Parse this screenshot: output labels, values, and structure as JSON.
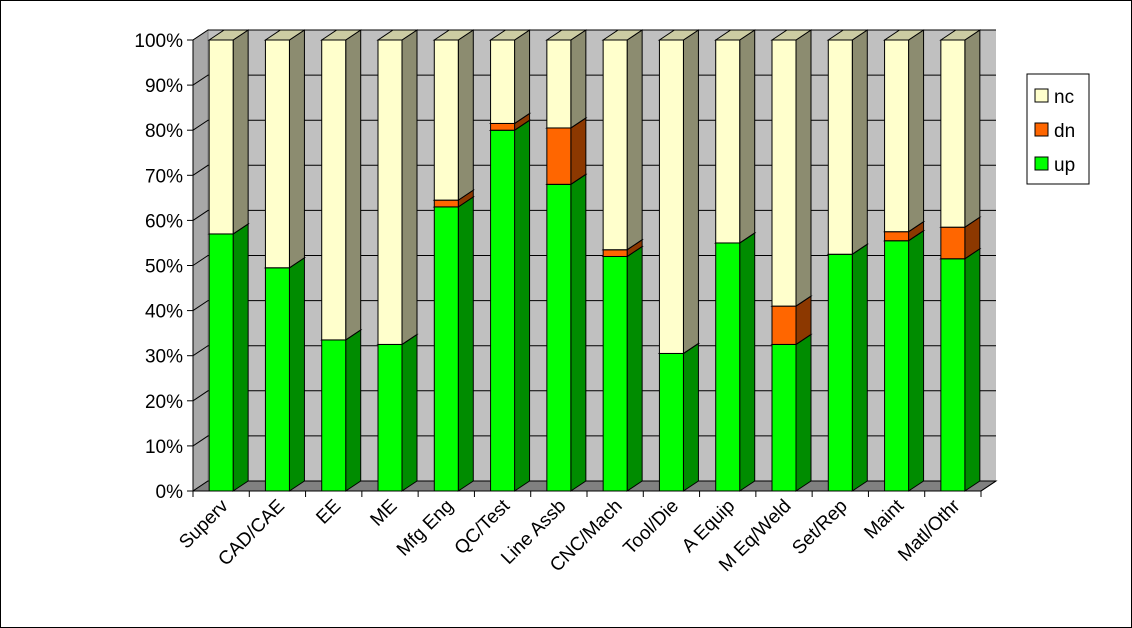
{
  "chart_data": {
    "type": "bar",
    "stacked": true,
    "percent_stacked": true,
    "three_d": true,
    "categories": [
      "Superv",
      "CAD/CAE",
      "EE",
      "ME",
      "Mfg Eng",
      "QC/Test",
      "Line Assb",
      "CNC/Mach",
      "Tool/Die",
      "A Equip",
      "M Eq/Weld",
      "Set/Rep",
      "Maint",
      "Matl/Othr"
    ],
    "series": [
      {
        "name": "up",
        "color": "#00ff00",
        "values": [
          57,
          49.5,
          33.5,
          32.5,
          63,
          80,
          68,
          52,
          30.5,
          55,
          32.5,
          52.5,
          55.5,
          51.5
        ]
      },
      {
        "name": "dn",
        "color": "#ff6600",
        "values": [
          0,
          0,
          0,
          0,
          1.5,
          1.5,
          12.5,
          1.5,
          0,
          0,
          8.5,
          0,
          2,
          7
        ]
      },
      {
        "name": "nc",
        "color": "#ffffcc",
        "values": [
          43,
          50.5,
          66.5,
          67.5,
          35.5,
          18.5,
          19.5,
          46.5,
          69.5,
          45,
          59,
          47.5,
          42.5,
          41.5
        ]
      }
    ],
    "y_ticks": [
      "0%",
      "10%",
      "20%",
      "30%",
      "40%",
      "50%",
      "60%",
      "70%",
      "80%",
      "90%",
      "100%"
    ],
    "ylim": [
      0,
      100
    ],
    "grid": true,
    "legend": {
      "placement": "right",
      "items": [
        {
          "label": "nc",
          "color": "#ffffcc"
        },
        {
          "label": "dn",
          "color": "#ff6600"
        },
        {
          "label": "up",
          "color": "#00ff00"
        }
      ]
    },
    "title": "",
    "xlabel": "",
    "ylabel": ""
  }
}
